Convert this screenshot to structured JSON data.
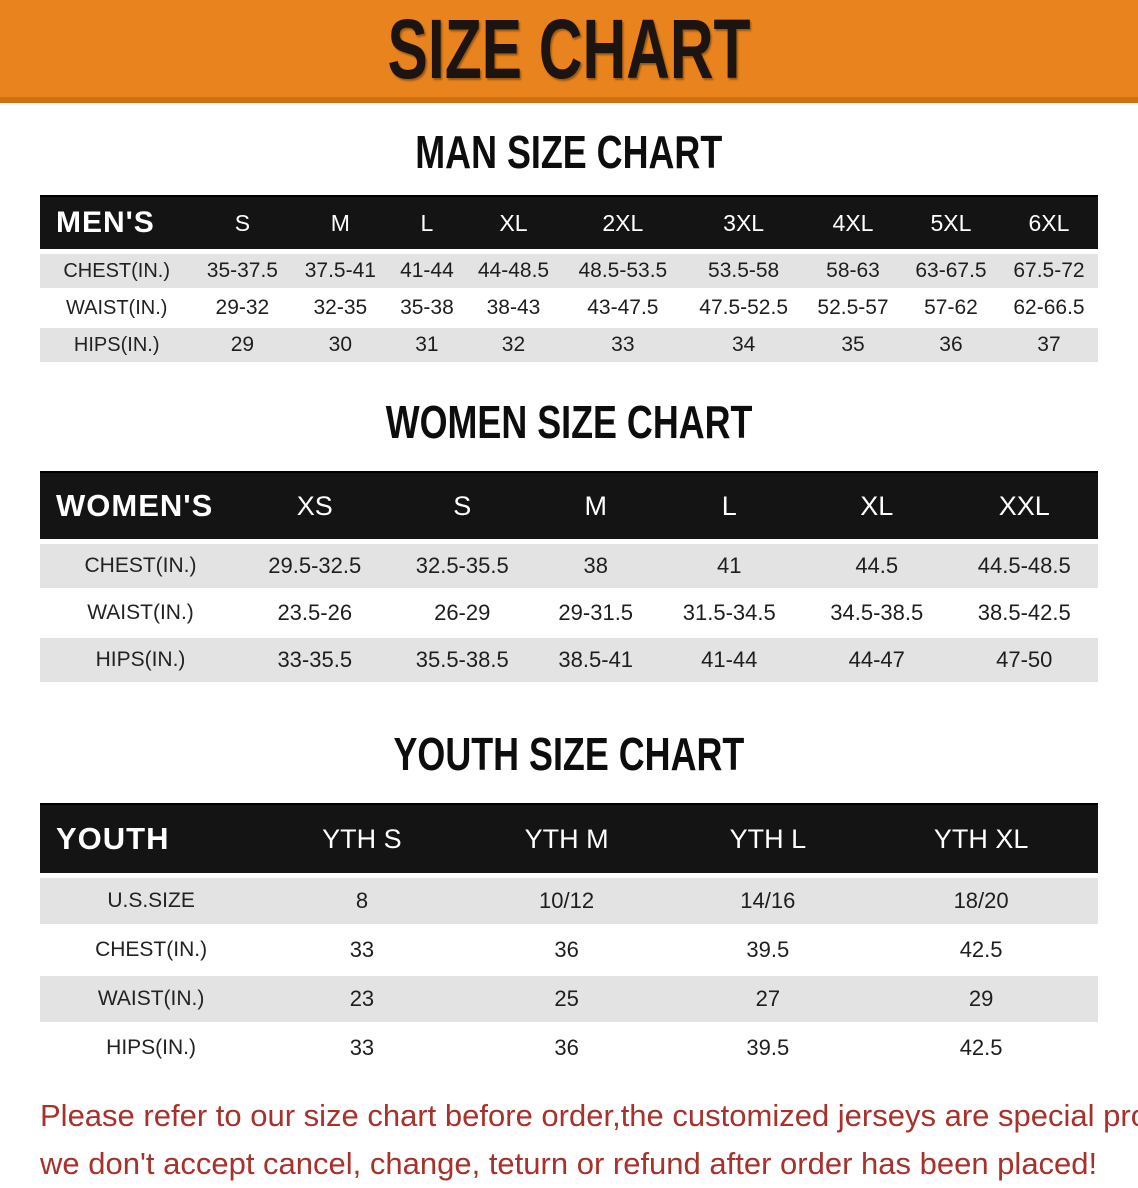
{
  "banner": {
    "title": "SIZE CHART",
    "bg_color": "#E8831D",
    "text_color": "#1b1410"
  },
  "tables": [
    {
      "id": "men",
      "heading": "MAN SIZE CHART",
      "header_label": "MEN'S",
      "columns": [
        "S",
        "M",
        "L",
        "XL",
        "2XL",
        "3XL",
        "4XL",
        "5XL",
        "6XL"
      ],
      "rows": [
        {
          "label": "CHEST(IN.)",
          "values": [
            "35-37.5",
            "37.5-41",
            "41-44",
            "44-48.5",
            "48.5-53.5",
            "53.5-58",
            "58-63",
            "63-67.5",
            "67.5-72"
          ]
        },
        {
          "label": "WAIST(IN.)",
          "values": [
            "29-32",
            "32-35",
            "35-38",
            "38-43",
            "43-47.5",
            "47.5-52.5",
            "52.5-57",
            "57-62",
            "62-66.5"
          ]
        },
        {
          "label": "HIPS(IN.)",
          "values": [
            "29",
            "30",
            "31",
            "32",
            "33",
            "34",
            "35",
            "36",
            "37"
          ]
        }
      ]
    },
    {
      "id": "women",
      "heading": "WOMEN SIZE CHART",
      "header_label": "WOMEN'S",
      "columns": [
        "XS",
        "S",
        "M",
        "L",
        "XL",
        "XXL"
      ],
      "rows": [
        {
          "label": "CHEST(IN.)",
          "values": [
            "29.5-32.5",
            "32.5-35.5",
            "38",
            "41",
            "44.5",
            "44.5-48.5"
          ]
        },
        {
          "label": "WAIST(IN.)",
          "values": [
            "23.5-26",
            "26-29",
            "29-31.5",
            "31.5-34.5",
            "34.5-38.5",
            "38.5-42.5"
          ]
        },
        {
          "label": "HIPS(IN.)",
          "values": [
            "33-35.5",
            "35.5-38.5",
            "38.5-41",
            "41-44",
            "44-47",
            "47-50"
          ]
        }
      ]
    },
    {
      "id": "youth",
      "heading": "YOUTH SIZE CHART",
      "header_label": "YOUTH",
      "columns": [
        "YTH S",
        "YTH M",
        "YTH L",
        "YTH XL"
      ],
      "rows": [
        {
          "label": "U.S.SIZE",
          "values": [
            "8",
            "10/12",
            "14/16",
            "18/20"
          ]
        },
        {
          "label": "CHEST(IN.)",
          "values": [
            "33",
            "36",
            "39.5",
            "42.5"
          ]
        },
        {
          "label": "WAIST(IN.)",
          "values": [
            "23",
            "25",
            "27",
            "29"
          ]
        },
        {
          "label": "HIPS(IN.)",
          "values": [
            "33",
            "36",
            "39.5",
            "42.5"
          ]
        }
      ]
    }
  ],
  "footer": {
    "color": "#A6322B",
    "lines": [
      "Please refer to our size chart before order,the customized jerseys are special products,",
      "we don't accept cancel, change, teturn or refund after order has been placed!"
    ]
  }
}
